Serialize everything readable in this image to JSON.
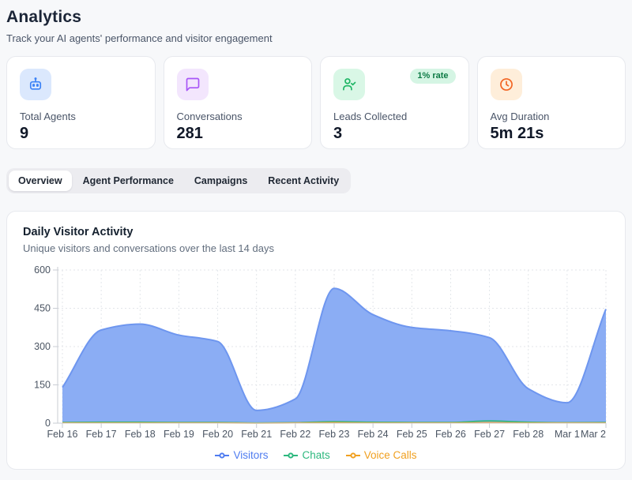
{
  "header": {
    "title": "Analytics",
    "subtitle": "Track your AI agents' performance and visitor engagement"
  },
  "stats": [
    {
      "label": "Total Agents",
      "value": "9",
      "icon": "robot-icon",
      "icon_color": "#3b82f6",
      "icon_bg": "#dbe8fd",
      "badge": ""
    },
    {
      "label": "Conversations",
      "value": "281",
      "icon": "chat-bubble-icon",
      "icon_color": "#a855f7",
      "icon_bg": "#f3e6fd",
      "badge": ""
    },
    {
      "label": "Leads Collected",
      "value": "3",
      "icon": "user-check-icon",
      "icon_color": "#1db564",
      "icon_bg": "#d9f7e6",
      "badge": "1% rate"
    },
    {
      "label": "Avg Duration",
      "value": "5m 21s",
      "icon": "clock-icon",
      "icon_color": "#f26422",
      "icon_bg": "#feeeda",
      "badge": ""
    }
  ],
  "tabs": [
    {
      "label": "Overview",
      "active": true
    },
    {
      "label": "Agent Performance",
      "active": false
    },
    {
      "label": "Campaigns",
      "active": false
    },
    {
      "label": "Recent Activity",
      "active": false
    }
  ],
  "chart_card": {
    "title": "Daily Visitor Activity",
    "subtitle": "Unique visitors and conversations over the last 14 days"
  },
  "chart_data": {
    "type": "area",
    "title": "Daily Visitor Activity",
    "x": [
      "Feb 16",
      "Feb 17",
      "Feb 18",
      "Feb 19",
      "Feb 20",
      "Feb 21",
      "Feb 22",
      "Feb 23",
      "Feb 24",
      "Feb 25",
      "Feb 26",
      "Feb 27",
      "Feb 28",
      "Mar 1",
      "Mar 2"
    ],
    "series": [
      {
        "name": "Visitors",
        "color": "#4f7cf0",
        "fill": "#8badf4",
        "stroke": "#6e96ef",
        "values": [
          140,
          365,
          388,
          345,
          320,
          50,
          95,
          528,
          425,
          375,
          362,
          335,
          135,
          80,
          447
        ]
      },
      {
        "name": "Chats",
        "color": "#2db87e",
        "fill": "none",
        "stroke": "#2db87e",
        "values": [
          3,
          4,
          4,
          3,
          3,
          1,
          2,
          6,
          4,
          3,
          3,
          9,
          4,
          2,
          3
        ]
      },
      {
        "name": "Voice Calls",
        "color": "#f0a020",
        "fill": "none",
        "stroke": "#f0a020",
        "values": [
          1,
          1,
          1,
          1,
          1,
          0,
          1,
          2,
          1,
          1,
          1,
          2,
          1,
          1,
          1
        ]
      }
    ],
    "ylim": [
      0,
      600
    ],
    "yticks": [
      0,
      150,
      300,
      450,
      600
    ],
    "grid": true,
    "legend_position": "bottom",
    "axis_color": "#c9ccd3",
    "grid_color": "#e3e6ea",
    "tick_label_color": "#4b5563"
  }
}
